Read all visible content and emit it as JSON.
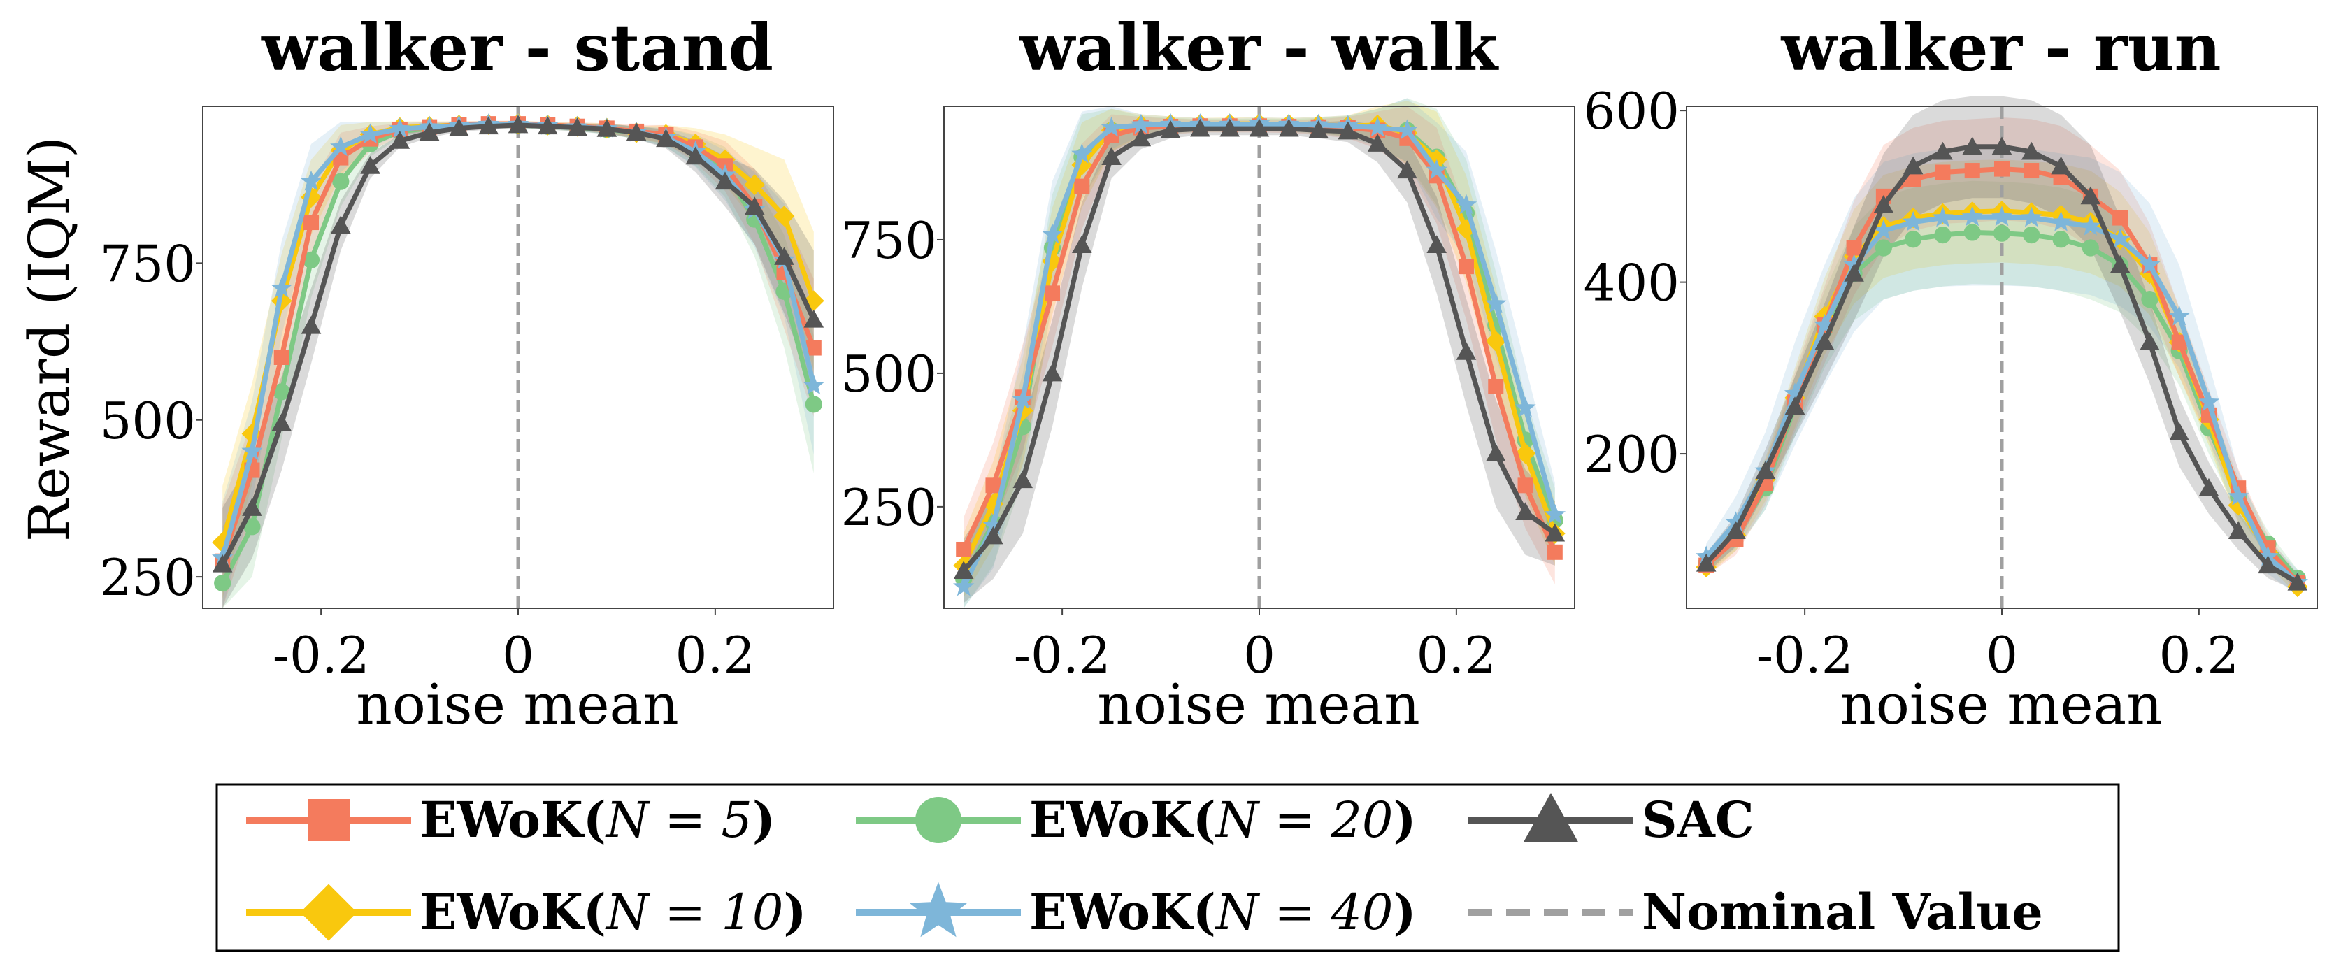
{
  "chart_data": [
    {
      "type": "line",
      "title": "walker - stand",
      "xlabel": "noise mean",
      "ylabel": "Reward (IQM)",
      "xlim": [
        -0.32,
        0.32
      ],
      "ylim": [
        200,
        1000
      ],
      "xticks": [
        -0.2,
        0,
        0.2
      ],
      "xtick_labels": [
        "-0.2",
        "0",
        "0.2"
      ],
      "yticks": [
        250,
        500,
        750
      ],
      "ytick_labels": [
        "250",
        "500",
        "750"
      ],
      "x": [
        -0.3,
        -0.27,
        -0.24,
        -0.21,
        -0.18,
        -0.15,
        -0.12,
        -0.09,
        -0.06,
        -0.03,
        0,
        0.03,
        0.06,
        0.09,
        0.12,
        0.15,
        0.18,
        0.21,
        0.24,
        0.27,
        0.3
      ],
      "nominal_value": 0,
      "series": [
        {
          "name": "EWoK(N=5)",
          "values": [
            275,
            420,
            600,
            815,
            918,
            948,
            963,
            967,
            970,
            972,
            972,
            970,
            968,
            965,
            960,
            955,
            935,
            905,
            840,
            735,
            615
          ]
        },
        {
          "name": "EWoK(N=10)",
          "values": [
            305,
            478,
            690,
            855,
            930,
            955,
            966,
            968,
            970,
            971,
            972,
            970,
            968,
            965,
            958,
            955,
            940,
            915,
            875,
            825,
            690
          ]
        },
        {
          "name": "EWoK(N=20)",
          "values": [
            240,
            330,
            545,
            755,
            880,
            940,
            960,
            965,
            968,
            970,
            970,
            968,
            966,
            963,
            958,
            950,
            930,
            895,
            820,
            705,
            525
          ]
        },
        {
          "name": "EWoK(N=40)",
          "values": [
            280,
            450,
            710,
            880,
            935,
            955,
            964,
            967,
            969,
            971,
            971,
            969,
            967,
            964,
            958,
            950,
            928,
            890,
            835,
            755,
            555
          ]
        },
        {
          "name": "SAC",
          "values": [
            270,
            360,
            495,
            650,
            810,
            905,
            945,
            958,
            965,
            968,
            970,
            968,
            966,
            964,
            958,
            948,
            920,
            880,
            840,
            760,
            660
          ]
        }
      ],
      "band_halfwidth": [
        90,
        80,
        75,
        60,
        40,
        20,
        10,
        8,
        6,
        5,
        5,
        5,
        6,
        8,
        10,
        15,
        25,
        40,
        60,
        90,
        110
      ]
    },
    {
      "type": "line",
      "title": "walker - walk",
      "xlabel": "noise mean",
      "ylabel": "",
      "xlim": [
        -0.32,
        0.32
      ],
      "ylim": [
        60,
        1000
      ],
      "xticks": [
        -0.2,
        0,
        0.2
      ],
      "xtick_labels": [
        "-0.2",
        "0",
        "0.2"
      ],
      "yticks": [
        250,
        500,
        750
      ],
      "ytick_labels": [
        "250",
        "500",
        "750"
      ],
      "x": [
        -0.3,
        -0.27,
        -0.24,
        -0.21,
        -0.18,
        -0.15,
        -0.12,
        -0.09,
        -0.06,
        -0.03,
        0,
        0.03,
        0.06,
        0.09,
        0.12,
        0.15,
        0.18,
        0.21,
        0.24,
        0.27,
        0.3
      ],
      "nominal_value": 0,
      "series": [
        {
          "name": "EWoK(N=5)",
          "values": [
            170,
            290,
            455,
            650,
            850,
            945,
            960,
            962,
            963,
            963,
            963,
            962,
            961,
            960,
            955,
            940,
            870,
            700,
            475,
            290,
            165
          ]
        },
        {
          "name": "EWoK(N=10)",
          "values": [
            140,
            255,
            430,
            710,
            890,
            955,
            965,
            966,
            966,
            967,
            967,
            966,
            965,
            963,
            965,
            950,
            900,
            770,
            560,
            350,
            200
          ]
        },
        {
          "name": "EWoK(N=20)",
          "values": [
            115,
            220,
            400,
            735,
            905,
            955,
            962,
            963,
            964,
            964,
            965,
            964,
            963,
            962,
            960,
            955,
            905,
            800,
            590,
            375,
            225
          ]
        },
        {
          "name": "EWoK(N=40)",
          "values": [
            100,
            215,
            450,
            760,
            910,
            960,
            965,
            966,
            966,
            966,
            967,
            966,
            965,
            963,
            960,
            955,
            880,
            815,
            630,
            435,
            235
          ]
        },
        {
          "name": "SAC",
          "values": [
            130,
            195,
            300,
            500,
            740,
            905,
            940,
            955,
            958,
            958,
            958,
            958,
            955,
            953,
            930,
            880,
            740,
            540,
            350,
            240,
            200
          ]
        }
      ],
      "band_halfwidth": [
        60,
        80,
        100,
        100,
        80,
        40,
        20,
        15,
        12,
        12,
        12,
        12,
        15,
        20,
        35,
        60,
        90,
        100,
        100,
        80,
        60
      ]
    },
    {
      "type": "line",
      "title": "walker - run",
      "xlabel": "noise mean",
      "ylabel": "",
      "xlim": [
        -0.32,
        0.32
      ],
      "ylim": [
        20,
        605
      ],
      "xticks": [
        -0.2,
        0,
        0.2
      ],
      "xtick_labels": [
        "-0.2",
        "0",
        "0.2"
      ],
      "yticks": [
        200,
        400,
        600
      ],
      "ytick_labels": [
        "200",
        "400",
        "600"
      ],
      "x": [
        -0.3,
        -0.27,
        -0.24,
        -0.21,
        -0.18,
        -0.15,
        -0.12,
        -0.09,
        -0.06,
        -0.03,
        0,
        0.03,
        0.06,
        0.09,
        0.12,
        0.15,
        0.18,
        0.21,
        0.24,
        0.27,
        0.3
      ],
      "nominal_value": 0,
      "series": [
        {
          "name": "EWoK(N=5)",
          "values": [
            70,
            100,
            165,
            260,
            350,
            440,
            500,
            520,
            528,
            530,
            532,
            530,
            522,
            500,
            475,
            420,
            330,
            245,
            160,
            90,
            50
          ]
        },
        {
          "name": "EWoK(N=10)",
          "values": [
            68,
            105,
            170,
            265,
            360,
            430,
            465,
            475,
            480,
            482,
            483,
            481,
            478,
            470,
            450,
            410,
            330,
            240,
            140,
            85,
            45
          ]
        },
        {
          "name": "EWoK(N=20)",
          "values": [
            72,
            105,
            160,
            255,
            345,
            410,
            440,
            450,
            455,
            458,
            457,
            455,
            450,
            440,
            420,
            380,
            320,
            230,
            150,
            95,
            55
          ]
        },
        {
          "name": "EWoK(N=40)",
          "values": [
            80,
            120,
            180,
            270,
            350,
            420,
            460,
            470,
            475,
            476,
            476,
            475,
            470,
            465,
            450,
            420,
            360,
            260,
            150,
            80,
            50
          ]
        },
        {
          "name": "SAC",
          "values": [
            72,
            110,
            180,
            255,
            330,
            410,
            490,
            535,
            552,
            558,
            558,
            552,
            535,
            500,
            420,
            330,
            225,
            160,
            110,
            70,
            50
          ]
        }
      ],
      "band_halfwidth": [
        12,
        18,
        25,
        35,
        45,
        55,
        60,
        60,
        60,
        60,
        60,
        60,
        60,
        60,
        55,
        48,
        40,
        30,
        22,
        15,
        10
      ],
      "wide_band_series": "EWoK(N=40)",
      "wide_band_halfwidth": [
        15,
        30,
        45,
        60,
        70,
        78,
        80,
        80,
        80,
        80,
        80,
        80,
        80,
        80,
        78,
        72,
        60,
        45,
        30,
        20,
        15
      ]
    }
  ],
  "legend": {
    "placement": "bottom-center",
    "entries": [
      {
        "label": "EWoK(",
        "math": "N = 5",
        "suffix": ")",
        "color": "#f47b5d",
        "marker": "square",
        "dash": false
      },
      {
        "label": "EWoK(",
        "math": "N = 20",
        "suffix": ")",
        "color": "#7ec985",
        "marker": "circle",
        "dash": false
      },
      {
        "label": "SAC",
        "math": "",
        "suffix": "",
        "color": "#555555",
        "marker": "triangle",
        "dash": false
      },
      {
        "label": "EWoK(",
        "math": "N = 10",
        "suffix": ")",
        "color": "#f9c80e",
        "marker": "diamond",
        "dash": false
      },
      {
        "label": "EWoK(",
        "math": "N = 40",
        "suffix": ")",
        "color": "#7eb6d9",
        "marker": "star",
        "dash": false
      },
      {
        "label": "Nominal Value",
        "math": "",
        "suffix": "",
        "color": "#a0a0a0",
        "marker": "none",
        "dash": true
      }
    ]
  },
  "colors": {
    "n5": "#f47b5d",
    "n10": "#f9c80e",
    "n20": "#7ec985",
    "n40": "#7eb6d9",
    "sac": "#555555",
    "nominal": "#a0a0a0"
  }
}
